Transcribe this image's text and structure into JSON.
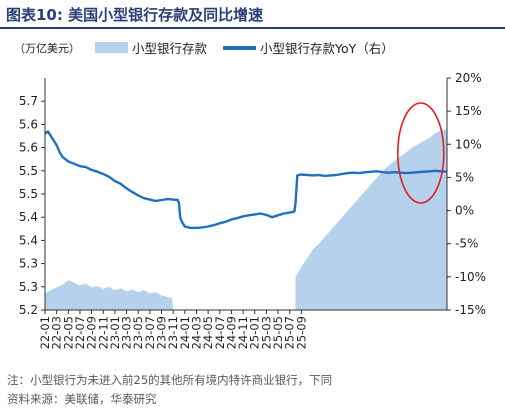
{
  "figure": {
    "title": "图表10:   美国小型银行存款及同比增速",
    "note": "注：小型银行为未进入前25的其他所有境内特许商业银行，下同",
    "source": "资料来源：美联储，华泰研究"
  },
  "colors": {
    "title": "#2a3f78",
    "area": "#b5d1eb",
    "line": "#1f6fc2",
    "annotation": "#e02020"
  },
  "chart_data": {
    "type": "line+area",
    "unit_label": "（万亿美元）",
    "legend": [
      "小型银行存款",
      "小型银行存款YoY（右）"
    ],
    "legend_placement": "top",
    "grid": false,
    "x_tick_labels": [
      "22-01",
      "22-03",
      "22-05",
      "22-07",
      "22-09",
      "22-11",
      "23-01",
      "23-03",
      "23-05",
      "23-07",
      "23-09",
      "23-11",
      "24-01",
      "24-03",
      "24-05",
      "24-07",
      "24-09",
      "24-11",
      "25-01",
      "25-03",
      "25-05",
      "25-07",
      "25-09"
    ],
    "x_range": [
      "2022-01",
      "2025-09"
    ],
    "y_left": {
      "label": "",
      "range": [
        5.2,
        5.7
      ],
      "ticks": [
        "5.2",
        "5.3",
        "5.3",
        "5.4",
        "5.4",
        "5.5",
        "5.5",
        "5.6",
        "5.6",
        "5.7"
      ],
      "tick_values": [
        5.2,
        5.25,
        5.3,
        5.35,
        5.4,
        5.45,
        5.5,
        5.55,
        5.6,
        5.65
      ]
    },
    "y_right": {
      "label": "",
      "range": [
        -15,
        20
      ],
      "ticks": [
        "-15%",
        "-10%",
        "-5%",
        "0%",
        "5%",
        "10%",
        "15%",
        "20%"
      ],
      "tick_values": [
        -15,
        -10,
        -5,
        0,
        5,
        10,
        15,
        20
      ]
    },
    "series": [
      {
        "name": "小型银行存款",
        "axis": "left",
        "kind": "line",
        "points": [
          [
            0.0,
            5.58
          ],
          [
            0.5,
            5.585
          ],
          [
            1.0,
            5.575
          ],
          [
            1.5,
            5.565
          ],
          [
            2.0,
            5.555
          ],
          [
            2.5,
            5.54
          ],
          [
            3.0,
            5.53
          ],
          [
            4.0,
            5.52
          ],
          [
            5.0,
            5.515
          ],
          [
            6.0,
            5.51
          ],
          [
            7.0,
            5.508
          ],
          [
            8.0,
            5.502
          ],
          [
            9.0,
            5.498
          ],
          [
            10.0,
            5.493
          ],
          [
            11.0,
            5.487
          ],
          [
            12.0,
            5.478
          ],
          [
            13.0,
            5.472
          ],
          [
            14.0,
            5.462
          ],
          [
            15.0,
            5.454
          ],
          [
            16.0,
            5.447
          ],
          [
            17.0,
            5.441
          ],
          [
            18.0,
            5.438
          ],
          [
            19.0,
            5.435
          ],
          [
            20.0,
            5.437
          ],
          [
            21.0,
            5.439
          ],
          [
            22.0,
            5.438
          ],
          [
            22.8,
            5.437
          ],
          [
            23.0,
            5.43
          ],
          [
            23.2,
            5.4
          ],
          [
            23.5,
            5.39
          ],
          [
            24.0,
            5.38
          ],
          [
            25.0,
            5.377
          ],
          [
            26.0,
            5.377
          ],
          [
            27.0,
            5.378
          ],
          [
            28.0,
            5.38
          ],
          [
            29.0,
            5.383
          ],
          [
            30.0,
            5.387
          ],
          [
            31.0,
            5.39
          ],
          [
            32.0,
            5.395
          ],
          [
            33.0,
            5.398
          ],
          [
            34.0,
            5.402
          ],
          [
            35.0,
            5.404
          ],
          [
            36.0,
            5.406
          ],
          [
            37.0,
            5.408
          ],
          [
            38.0,
            5.405
          ],
          [
            39.0,
            5.4
          ],
          [
            40.0,
            5.404
          ],
          [
            41.0,
            5.408
          ],
          [
            42.0,
            5.41
          ],
          [
            42.8,
            5.412
          ],
          [
            43.0,
            5.43
          ],
          [
            43.3,
            5.49
          ],
          [
            44.0,
            5.492
          ],
          [
            45.0,
            5.491
          ],
          [
            46.0,
            5.49
          ],
          [
            47.0,
            5.491
          ],
          [
            48.0,
            5.489
          ],
          [
            49.0,
            5.49
          ],
          [
            50.0,
            5.491
          ],
          [
            51.0,
            5.493
          ],
          [
            52.0,
            5.495
          ],
          [
            53.0,
            5.496
          ],
          [
            54.0,
            5.495
          ],
          [
            55.0,
            5.497
          ],
          [
            56.0,
            5.498
          ],
          [
            57.0,
            5.499
          ],
          [
            58.0,
            5.497
          ],
          [
            59.0,
            5.496
          ],
          [
            60.0,
            5.497
          ],
          [
            61.0,
            5.496
          ],
          [
            62.0,
            5.495
          ],
          [
            63.0,
            5.496
          ],
          [
            64.0,
            5.497
          ],
          [
            65.0,
            5.498
          ],
          [
            66.0,
            5.499
          ],
          [
            67.0,
            5.5
          ],
          [
            68.0,
            5.499
          ],
          [
            69.0,
            5.498
          ]
        ]
      },
      {
        "name": "小型银行存款YoY（右）",
        "axis": "right",
        "kind": "area",
        "points": [
          [
            0.0,
            -12.5
          ],
          [
            1.0,
            -12.0
          ],
          [
            2.0,
            -11.6
          ],
          [
            3.0,
            -11.2
          ],
          [
            4.0,
            -10.5
          ],
          [
            5.0,
            -10.9
          ],
          [
            6.0,
            -11.3
          ],
          [
            7.0,
            -11.0
          ],
          [
            8.0,
            -11.6
          ],
          [
            9.0,
            -11.4
          ],
          [
            10.0,
            -11.8
          ],
          [
            11.0,
            -11.5
          ],
          [
            12.0,
            -12.0
          ],
          [
            13.0,
            -11.7
          ],
          [
            14.0,
            -12.2
          ],
          [
            15.0,
            -11.9
          ],
          [
            16.0,
            -12.3
          ],
          [
            17.0,
            -12.0
          ],
          [
            18.0,
            -12.5
          ],
          [
            19.0,
            -12.3
          ],
          [
            20.0,
            -12.8
          ],
          [
            21.0,
            -13.0
          ],
          [
            21.8,
            -13.2
          ],
          [
            22.0,
            -15.0
          ],
          [
            43.0,
            -15.0
          ],
          [
            43.0,
            -10.0
          ],
          [
            44.0,
            -8.5
          ],
          [
            45.0,
            -7.2
          ],
          [
            46.0,
            -5.8
          ],
          [
            47.0,
            -5.0
          ],
          [
            48.0,
            -4.0
          ],
          [
            49.0,
            -3.0
          ],
          [
            50.0,
            -2.0
          ],
          [
            51.0,
            -1.0
          ],
          [
            52.0,
            0.0
          ],
          [
            53.0,
            1.0
          ],
          [
            54.0,
            2.0
          ],
          [
            55.0,
            3.0
          ],
          [
            56.0,
            4.0
          ],
          [
            57.0,
            5.0
          ],
          [
            58.0,
            6.0
          ],
          [
            59.0,
            6.8
          ],
          [
            60.0,
            7.5
          ],
          [
            61.0,
            8.2
          ],
          [
            62.0,
            8.8
          ],
          [
            63.0,
            9.5
          ],
          [
            64.0,
            10.0
          ],
          [
            65.0,
            10.5
          ],
          [
            66.0,
            11.0
          ],
          [
            67.0,
            11.7
          ],
          [
            68.0,
            12.1
          ],
          [
            69.0,
            12.3
          ]
        ]
      }
    ],
    "annotation": {
      "shape": "ellipse",
      "color": "#e02020",
      "highlights": "last 6 months (2025-04 to 2025-09)"
    }
  }
}
